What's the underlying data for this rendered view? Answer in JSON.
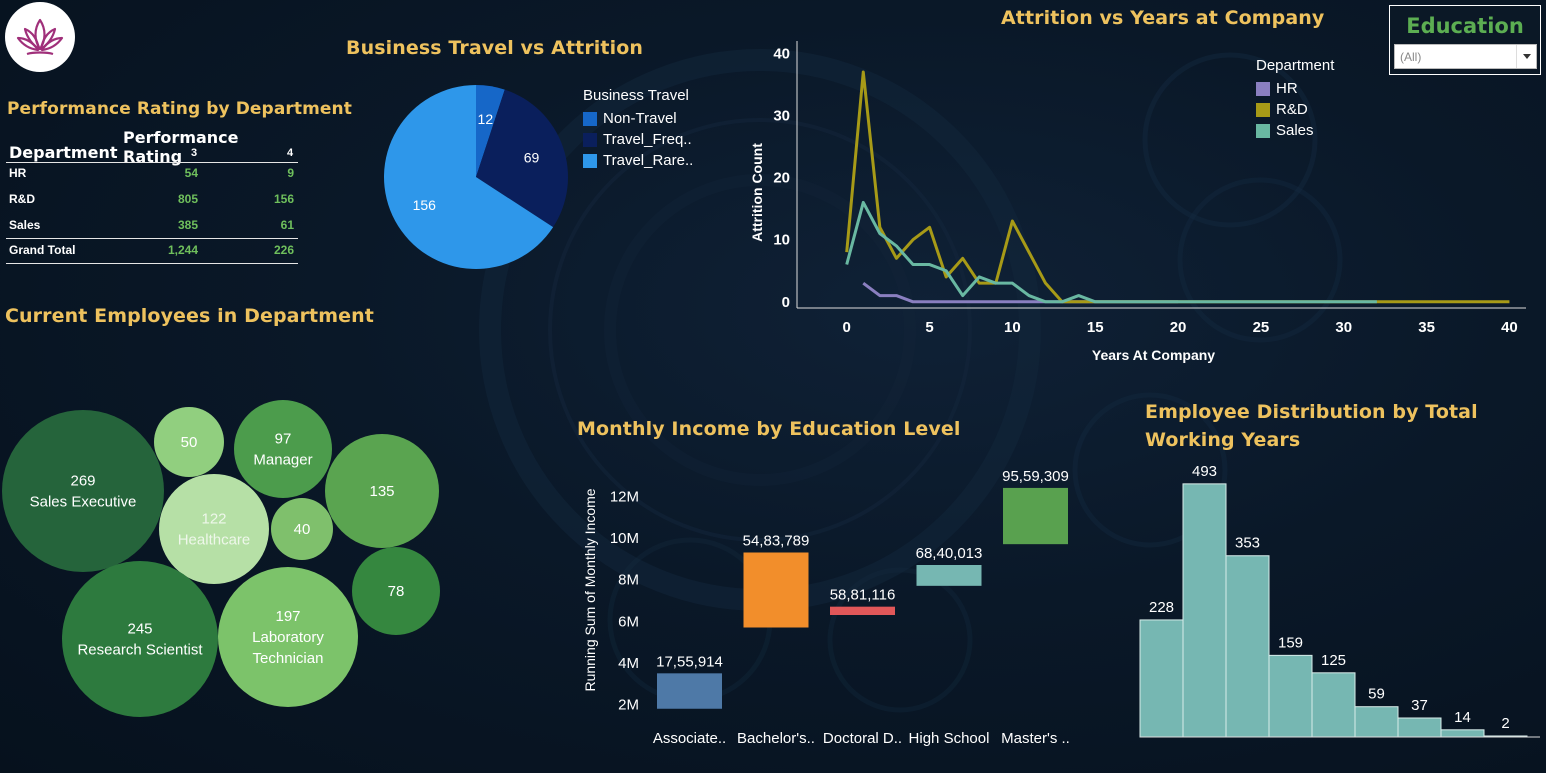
{
  "titles": {
    "perf": "Performance Rating by Department",
    "travel": "Business Travel vs Attrition",
    "attrition_years": "Attrition vs Years at Company",
    "employees": "Current Employees in Department",
    "income": "Monthly Income by Education Level",
    "working_years": "Employee Distribution by Total Working Years"
  },
  "education_filter": {
    "label": "Education",
    "selected": "(All)"
  },
  "perf_table": {
    "col_header": "Performance Rating",
    "row_header": "Department",
    "columns": [
      "3",
      "4"
    ],
    "rows": [
      {
        "dept": "HR",
        "v3": "54",
        "v4": "9"
      },
      {
        "dept": "R&D",
        "v3": "805",
        "v4": "156"
      },
      {
        "dept": "Sales",
        "v3": "385",
        "v4": "61"
      }
    ],
    "total": {
      "dept": "Grand Total",
      "v3": "1,244",
      "v4": "226"
    }
  },
  "chart_data": [
    {
      "id": "travel",
      "type": "pie",
      "legend_title": "Business Travel",
      "slices": [
        {
          "name": "Non-Travel",
          "legend_label": "Non-Travel",
          "value": 12,
          "color": "#1667c8"
        },
        {
          "name": "Travel_Frequently",
          "legend_label": "Travel_Freq..",
          "value": 69,
          "color": "#0a1f5c"
        },
        {
          "name": "Travel_Rarely",
          "legend_label": "Travel_Rare..",
          "value": 156,
          "color": "#2e97ea"
        }
      ]
    },
    {
      "id": "attrition_years",
      "type": "line",
      "xlabel": "Years At Company",
      "ylabel": "Attrition Count",
      "xlim": [
        -3,
        41
      ],
      "ylim": [
        -1,
        42
      ],
      "xticks": [
        0,
        5,
        10,
        15,
        20,
        25,
        30,
        35,
        40
      ],
      "yticks": [
        0,
        10,
        20,
        30,
        40
      ],
      "legend_title": "Department",
      "series": [
        {
          "name": "HR",
          "color": "#8a7fc0",
          "x": [
            1,
            2,
            3,
            4,
            5,
            6,
            7,
            8,
            9,
            10,
            11,
            12,
            13,
            14,
            15,
            16,
            17,
            18,
            19,
            20
          ],
          "y": [
            3,
            1,
            1,
            0,
            0,
            0,
            0,
            0,
            0,
            0,
            0,
            0,
            0,
            0,
            0,
            0,
            0,
            0,
            0,
            0
          ]
        },
        {
          "name": "R&D",
          "color": "#a79a17",
          "x": [
            0,
            1,
            2,
            3,
            4,
            5,
            6,
            7,
            8,
            9,
            10,
            11,
            12,
            13,
            14,
            15,
            16,
            17,
            18,
            19,
            20,
            21,
            22,
            23,
            24,
            25,
            26,
            27,
            28,
            29,
            30,
            31,
            32,
            33,
            34,
            35,
            36,
            37,
            38,
            39,
            40
          ],
          "y": [
            8,
            37,
            12,
            7,
            10,
            12,
            4,
            7,
            3,
            3,
            13,
            8,
            3,
            0,
            0,
            0,
            0,
            0,
            0,
            0,
            0,
            0,
            0,
            0,
            0,
            0,
            0,
            0,
            0,
            0,
            0,
            0,
            0,
            0,
            0,
            0,
            0,
            0,
            0,
            0,
            0
          ]
        },
        {
          "name": "Sales",
          "color": "#69b8a2",
          "x": [
            0,
            1,
            2,
            3,
            4,
            5,
            6,
            7,
            8,
            9,
            10,
            11,
            12,
            13,
            14,
            15,
            16,
            17,
            18,
            19,
            20,
            21,
            22,
            23,
            24,
            25,
            26,
            27,
            28,
            29,
            30,
            31,
            32
          ],
          "y": [
            6,
            16,
            11,
            9,
            6,
            6,
            5,
            1,
            4,
            3,
            3,
            1,
            0,
            0,
            1,
            0,
            0,
            0,
            0,
            0,
            0,
            0,
            0,
            0,
            0,
            0,
            0,
            0,
            0,
            0,
            0,
            0,
            0
          ]
        }
      ]
    },
    {
      "id": "employees",
      "type": "bubble",
      "bubbles": [
        {
          "value": 269,
          "label": "Sales Executive",
          "color": "#25643b"
        },
        {
          "value": 50,
          "label": "",
          "color": "#91cf7f"
        },
        {
          "value": 97,
          "label": "Manager",
          "color": "#4c9c4c"
        },
        {
          "value": 135,
          "label": "",
          "color": "#5aa450"
        },
        {
          "value": 122,
          "label": "Healthcare",
          "color": "#b6e0a6"
        },
        {
          "value": 40,
          "label": "",
          "color": "#7fc06c"
        },
        {
          "value": 78,
          "label": "",
          "color": "#35873f"
        },
        {
          "value": 245,
          "label": "Research Scientist",
          "color": "#2d7a3e"
        },
        {
          "value": 197,
          "label": "Laboratory Technician",
          "color": "#7cc36a"
        }
      ]
    },
    {
      "id": "income",
      "type": "bar",
      "subtype": "waterfall",
      "ylabel": "Running Sum of Monthly Income",
      "ylim": [
        1500000,
        13500000
      ],
      "yticks": [
        2000000,
        4000000,
        6000000,
        8000000,
        10000000,
        12000000
      ],
      "ytick_labels": [
        "2M",
        "4M",
        "6M",
        "8M",
        "10M",
        "12M"
      ],
      "categories": [
        "Associate..",
        "Bachelor's..",
        "Doctoral D..",
        "High School",
        "Master's .."
      ],
      "values": [
        1755914,
        5483789,
        5881116,
        6840013,
        9559309
      ],
      "value_labels": [
        "17,55,914",
        "54,83,789",
        "58,81,116",
        "68,40,013",
        "95,59,309"
      ],
      "bar_ranges": [
        [
          1800000,
          3500000
        ],
        [
          5700000,
          9300000
        ],
        [
          6300000,
          6700000
        ],
        [
          7700000,
          8700000
        ],
        [
          9700000,
          12400000
        ]
      ],
      "colors": [
        "#4e79a7",
        "#f28e2b",
        "#e15759",
        "#76b7b2",
        "#59a14f"
      ]
    },
    {
      "id": "working_years",
      "type": "bar",
      "subtype": "histogram",
      "values": [
        228,
        493,
        353,
        159,
        125,
        59,
        37,
        14,
        2
      ],
      "ylim": [
        0,
        520
      ],
      "color": "#76b7b2"
    }
  ]
}
